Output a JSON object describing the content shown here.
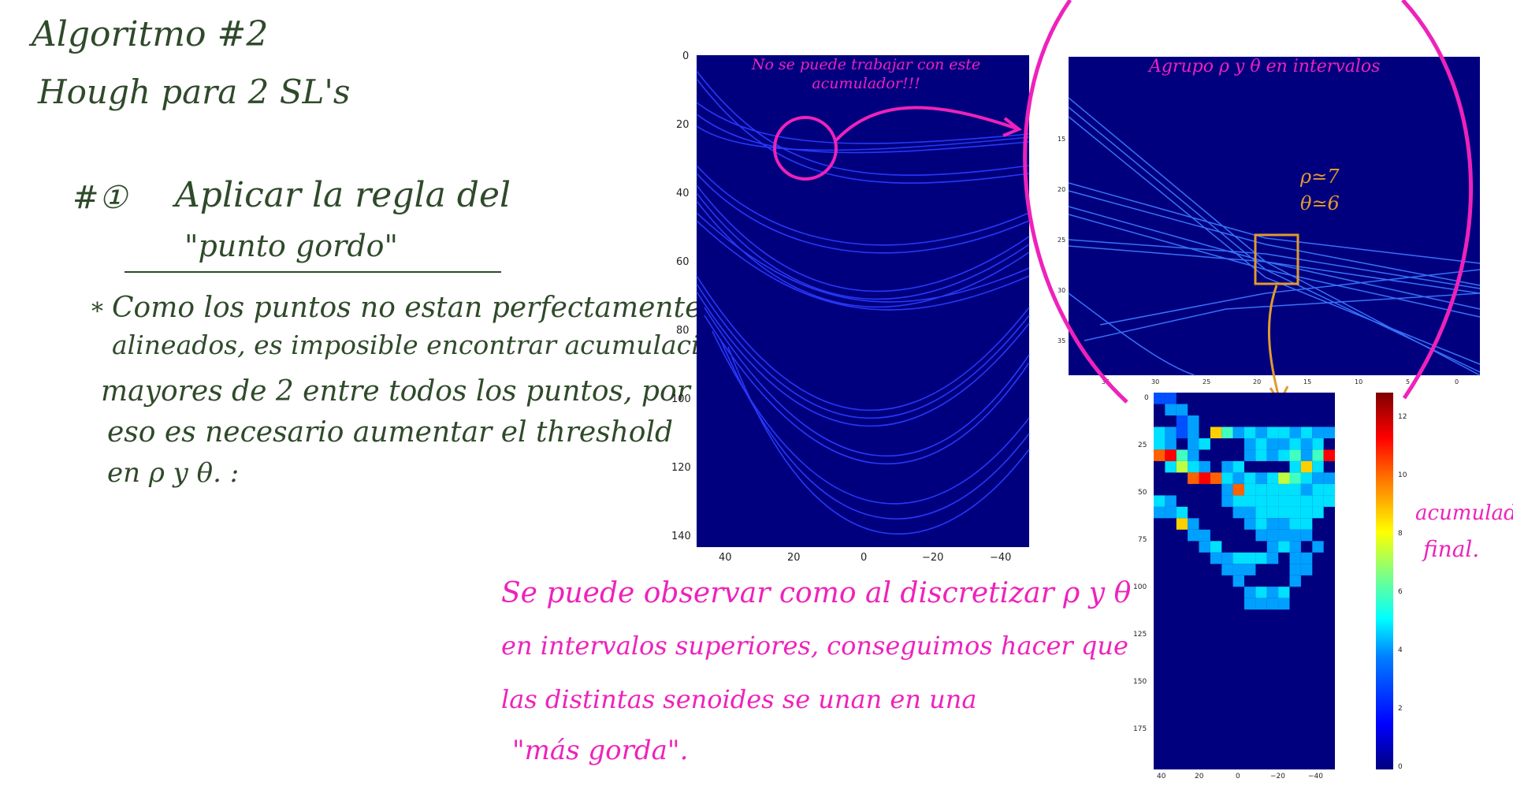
{
  "notes": {
    "title_line1": "Algoritmo #2",
    "title_line2": "Hough para 2 SL's",
    "step_number": "#①",
    "step_text": "Aplicar la regla del",
    "step_text2": "\"punto gordo\"",
    "bullet": "*",
    "para_lines": [
      "Como los puntos no estan perfectamente",
      "alineados, es imposible encontrar acumulaciones",
      "mayores de 2 entre todos los puntos, por",
      "eso es necesario aumentar el threshold",
      "en ρ y θ. :"
    ],
    "pink_plot1": "No se puede trabajar con este acumulador!!!",
    "pink_plot2": "Agrupo ρ y θ en intervalos",
    "orange_rho": "ρ≃7",
    "orange_theta": "θ≃6",
    "pink_bottom_lines": [
      "Se puede observar como al discretizar ρ y θ",
      "en intervalos superiores, conseguimos hacer que",
      "las distintas senoides se unan en una",
      "\"más gorda\"."
    ],
    "pink_right_line1": "acumulador",
    "pink_right_line2": "final."
  },
  "colors": {
    "ink_green": "#2f4a2a",
    "ink_pink": "#ee22bb",
    "ink_orange": "#e29a2e",
    "plot_bg": "#00007f",
    "sinusoid": "#2a3cff"
  },
  "chart_data": [
    {
      "type": "heatmap",
      "ytick_labels": [
        "0",
        "20",
        "40",
        "60",
        "80",
        "100",
        "120",
        "140"
      ],
      "xtick_labels": [
        "40",
        "20",
        "0",
        "−20",
        "−40"
      ],
      "ylim": [
        0,
        143
      ],
      "xlim": [
        50,
        -50
      ]
    },
    {
      "type": "heatmap",
      "ytick_labels": [
        "15",
        "20",
        "25",
        "30",
        "35"
      ],
      "xtick_labels": [
        "35",
        "30",
        "25",
        "20",
        "15",
        "10",
        "5",
        "0"
      ]
    },
    {
      "type": "heatmap",
      "ytick_labels": [
        "0",
        "25",
        "50",
        "75",
        "100",
        "125",
        "150",
        "175"
      ],
      "xtick_labels": [
        "40",
        "20",
        "0",
        "−20",
        "−40"
      ],
      "colorbar_ticks": [
        "0",
        "2",
        "4",
        "6",
        "8",
        "10",
        "12"
      ],
      "colorbar_range": [
        0,
        13
      ]
    }
  ]
}
